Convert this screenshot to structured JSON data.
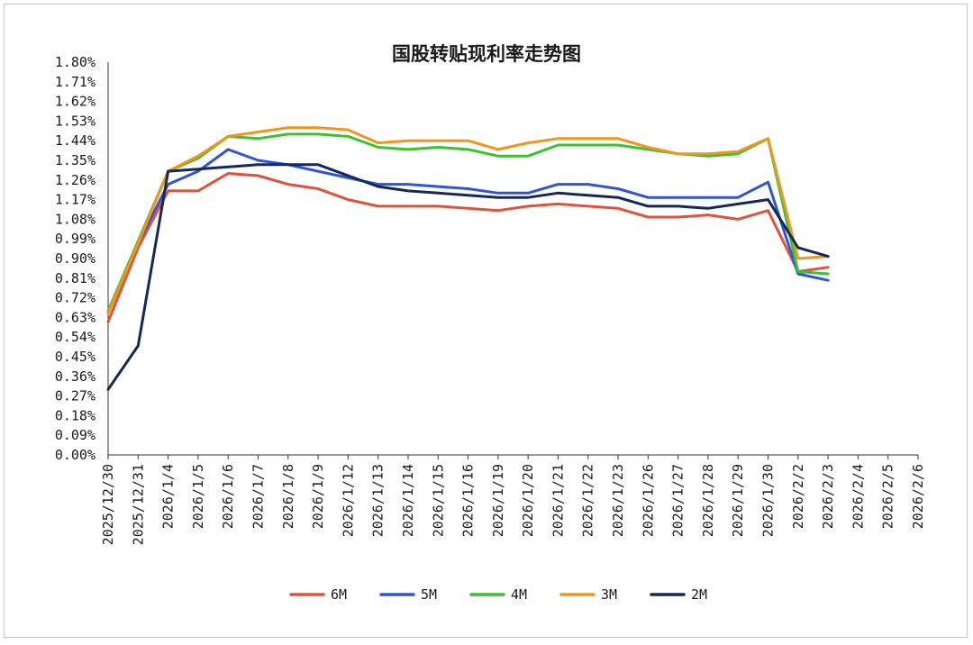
{
  "chart_data": {
    "type": "line",
    "title": "国股转贴现利率走势图",
    "xlabel": "",
    "ylabel": "",
    "ylim": [
      0,
      1.8
    ],
    "y_ticks": [
      "0.00%",
      "0.09%",
      "0.18%",
      "0.27%",
      "0.36%",
      "0.45%",
      "0.54%",
      "0.63%",
      "0.72%",
      "0.81%",
      "0.90%",
      "0.99%",
      "1.08%",
      "1.17%",
      "1.26%",
      "1.35%",
      "1.44%",
      "1.53%",
      "1.62%",
      "1.71%",
      "1.80%"
    ],
    "categories": [
      "2025/12/30",
      "2025/12/31",
      "2026/1/4",
      "2026/1/5",
      "2026/1/6",
      "2026/1/7",
      "2026/1/8",
      "2026/1/9",
      "2026/1/12",
      "2026/1/13",
      "2026/1/14",
      "2026/1/15",
      "2026/1/16",
      "2026/1/19",
      "2026/1/20",
      "2026/1/21",
      "2026/1/22",
      "2026/1/23",
      "2026/1/26",
      "2026/1/27",
      "2026/1/28",
      "2026/1/29",
      "2026/1/30",
      "2026/2/2",
      "2026/2/3",
      "2026/2/4",
      "2026/2/5",
      "2026/2/6"
    ],
    "grid": false,
    "legend_position": "bottom",
    "series": [
      {
        "name": "6M",
        "color": "#e0533a",
        "values": [
          0.61,
          0.95,
          1.21,
          1.21,
          1.29,
          1.28,
          1.24,
          1.22,
          1.17,
          1.14,
          1.14,
          1.14,
          1.13,
          1.12,
          1.14,
          1.15,
          1.14,
          1.13,
          1.09,
          1.09,
          1.1,
          1.08,
          1.12,
          0.84,
          0.86,
          null,
          null,
          null
        ]
      },
      {
        "name": "5M",
        "color": "#2f55d4",
        "values": [
          0.65,
          0.97,
          1.24,
          1.3,
          1.4,
          1.35,
          1.33,
          1.3,
          1.27,
          1.24,
          1.24,
          1.23,
          1.22,
          1.2,
          1.2,
          1.24,
          1.24,
          1.22,
          1.18,
          1.18,
          1.18,
          1.18,
          1.25,
          0.83,
          0.8,
          null,
          null,
          null
        ]
      },
      {
        "name": "4M",
        "color": "#3cc230",
        "values": [
          0.66,
          0.98,
          1.3,
          1.36,
          1.46,
          1.45,
          1.47,
          1.47,
          1.46,
          1.41,
          1.4,
          1.41,
          1.4,
          1.37,
          1.37,
          1.42,
          1.42,
          1.42,
          1.4,
          1.38,
          1.37,
          1.38,
          1.45,
          0.84,
          0.83,
          null,
          null,
          null
        ]
      },
      {
        "name": "3M",
        "color": "#f0961e",
        "values": [
          0.65,
          0.97,
          1.3,
          1.37,
          1.46,
          1.48,
          1.5,
          1.5,
          1.49,
          1.43,
          1.44,
          1.44,
          1.44,
          1.4,
          1.43,
          1.45,
          1.45,
          1.45,
          1.41,
          1.38,
          1.38,
          1.39,
          1.45,
          0.9,
          0.91,
          null,
          null,
          null
        ]
      },
      {
        "name": "2M",
        "color": "#14285a",
        "values": [
          0.3,
          0.5,
          1.3,
          1.31,
          1.32,
          1.33,
          1.33,
          1.33,
          1.28,
          1.23,
          1.21,
          1.2,
          1.19,
          1.18,
          1.18,
          1.2,
          1.19,
          1.18,
          1.14,
          1.14,
          1.13,
          1.15,
          1.17,
          0.95,
          0.91,
          null,
          null,
          null
        ]
      }
    ]
  }
}
